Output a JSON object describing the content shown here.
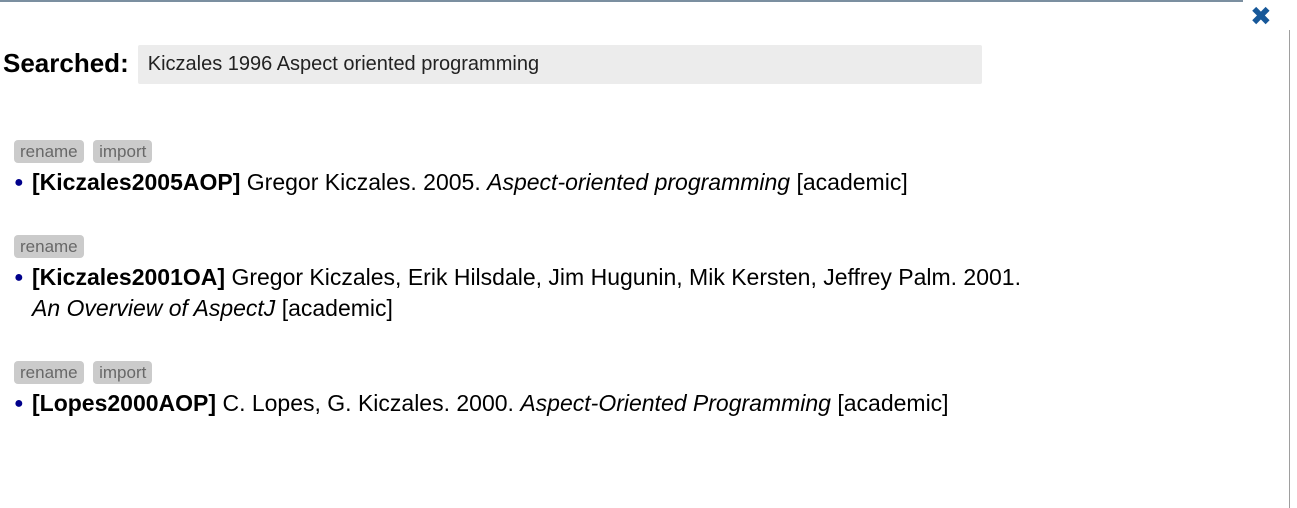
{
  "header": {
    "close_icon": "✖",
    "searched_label": "Searched:",
    "search_query": "Kiczales 1996 Aspect oriented programming"
  },
  "results": [
    {
      "actions": [
        "rename",
        "import"
      ],
      "key": "[Kiczales2005AOP]",
      "meta": "Gregor Kiczales. 2005.",
      "title": "Aspect-oriented programming",
      "tag": "[academic]"
    },
    {
      "actions": [
        "rename"
      ],
      "key": "[Kiczales2001OA]",
      "meta": "Gregor Kiczales, Erik Hilsdale, Jim Hugunin, Mik Kersten, Jeffrey Palm. 2001.",
      "title": "An Overview of AspectJ",
      "tag": "[academic]"
    },
    {
      "actions": [
        "rename",
        "import"
      ],
      "key": "[Lopes2000AOP]",
      "meta": "C. Lopes, G. Kiczales. 2000.",
      "title": "Aspect-Oriented Programming",
      "tag": "[academic]"
    }
  ],
  "icons": {
    "bullet": "●"
  },
  "colors": {
    "close_icon": "#175899",
    "bullet": "#00008b",
    "action_button_bg": "#cbcbcb",
    "action_button_text": "#686868",
    "search_input_bg": "#ececec",
    "top_border": "#7b8fa0",
    "right_border": "#9e9e9e"
  }
}
